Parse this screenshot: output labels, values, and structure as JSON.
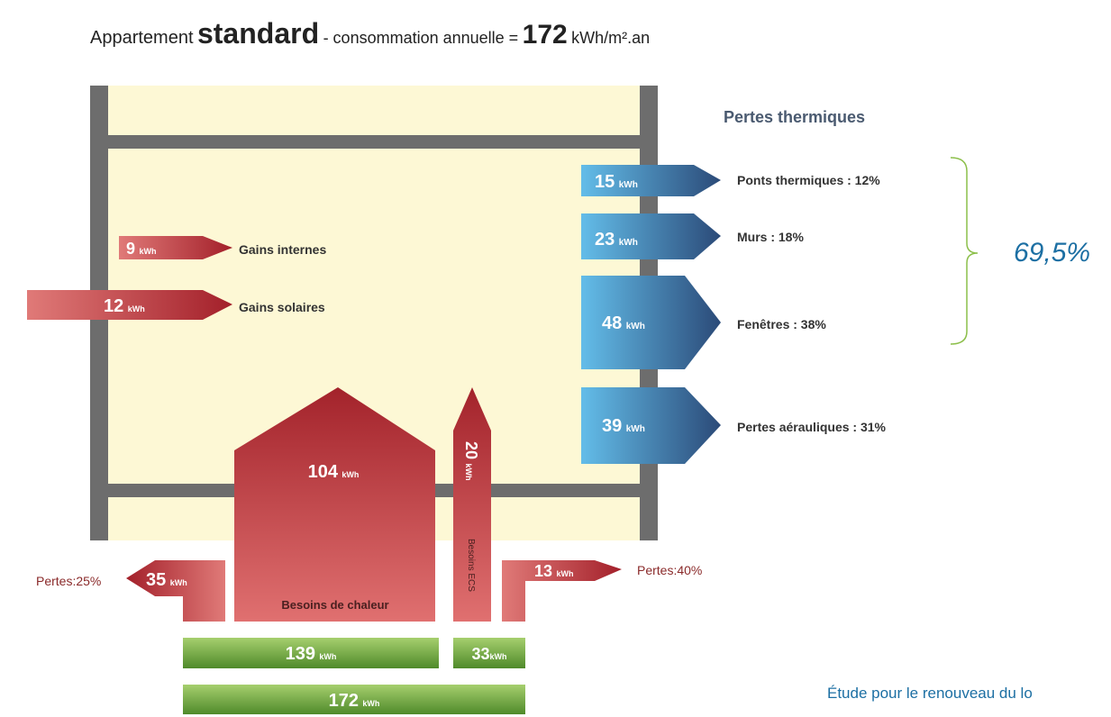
{
  "title": {
    "prefix": "Appartement",
    "type": "standard",
    "middle": "- consommation annuelle =",
    "value": "172",
    "unit": "kWh/m².an"
  },
  "losses": {
    "title": "Pertes thermiques",
    "items": [
      {
        "value": "15",
        "unit": "kWh",
        "label": "Ponts thermiques : 12%"
      },
      {
        "value": "23",
        "unit": "kWh",
        "label": "Murs : 18%"
      },
      {
        "value": "48",
        "unit": "kWh",
        "label": "Fenêtres : 38%"
      },
      {
        "value": "39",
        "unit": "kWh",
        "label": "Pertes aérauliques : 31%"
      }
    ],
    "bracket_total": "69,5%"
  },
  "gains": [
    {
      "value": "9",
      "unit": "kWh",
      "label": "Gains internes"
    },
    {
      "value": "12",
      "unit": "kWh",
      "label": "Gains solaires"
    }
  ],
  "heating": {
    "value": "104",
    "unit": "kWh",
    "label": "Besoins de chaleur"
  },
  "hot_water": {
    "value": "20",
    "unit": "kWh",
    "label": "Besoins ECS"
  },
  "heating_loss": {
    "value": "35",
    "unit": "kWh",
    "label": "Pertes:25%"
  },
  "hot_water_loss": {
    "value": "13",
    "unit": "kWh",
    "label": "Pertes:40%"
  },
  "totals": [
    {
      "value": "139",
      "unit": "kWh"
    },
    {
      "value": "33",
      "unit": "kWh"
    },
    {
      "value": "172",
      "unit": "kWh"
    }
  ],
  "footer": "Étude pour le renouveau du lo"
}
